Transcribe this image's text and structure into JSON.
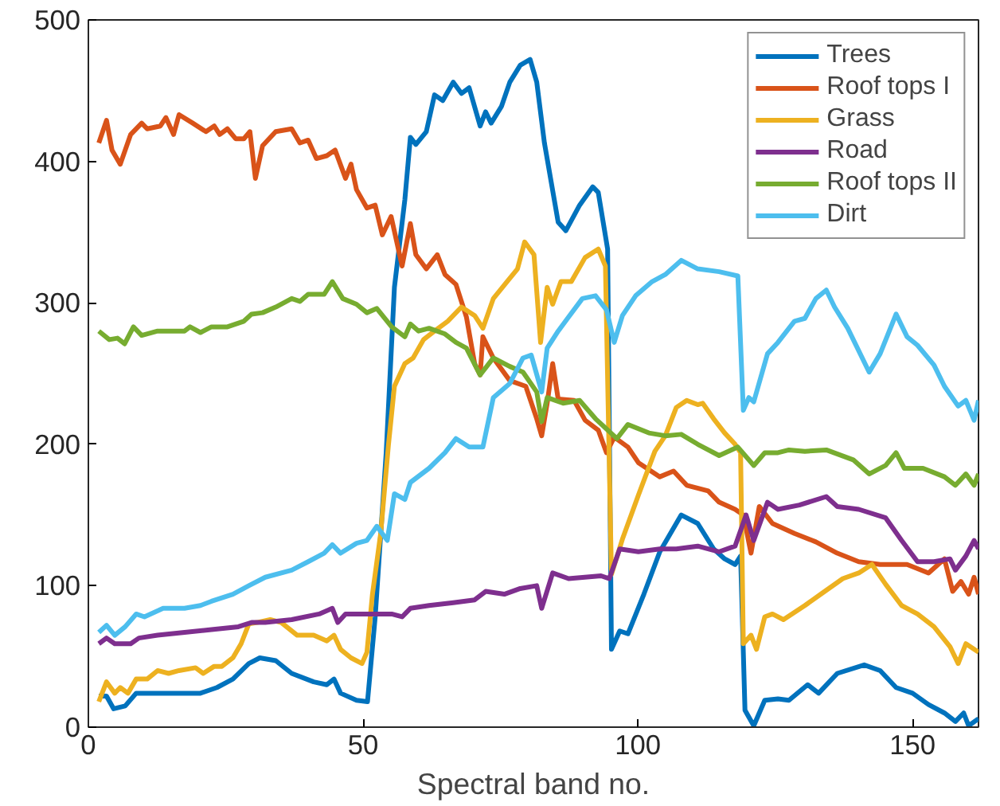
{
  "chart_data": {
    "type": "line",
    "xlabel": "Spectral band no.",
    "xlim": [
      0,
      162
    ],
    "ylim": [
      0,
      500
    ],
    "xticks": [
      0,
      50,
      100,
      150
    ],
    "yticks": [
      0,
      100,
      200,
      300,
      400,
      500
    ],
    "grid": false,
    "legend": "top right",
    "marker": "none",
    "line_style": "solid",
    "series": [
      {
        "name": "Trees",
        "color": "#0072bd",
        "x": [
          1.9,
          3.3,
          4.6,
          6.7,
          8.7,
          12.6,
          17.5,
          20.4,
          23.4,
          26.3,
          29.2,
          31.2,
          34.1,
          37,
          41,
          43.4,
          44.7,
          45.9,
          48.8,
          50.8,
          52.2,
          54.2,
          55.7,
          57.6,
          58.6,
          59.6,
          61.5,
          63,
          64.5,
          66.4,
          67.9,
          69.3,
          71.3,
          72.3,
          73.3,
          75.2,
          76.7,
          78.6,
          80.4,
          81.6,
          83,
          85.5,
          86.9,
          89.4,
          91.8,
          92.8,
          94.5,
          95.2,
          96.7,
          98.2,
          101.1,
          104,
          107.9,
          110.9,
          113.8,
          115.8,
          117.7,
          118.7,
          119.5,
          121.1,
          123.1,
          125.5,
          127.5,
          130.9,
          132.9,
          136.3,
          141.2,
          144.1,
          147,
          150,
          152.9,
          155.8,
          157.8,
          159.3,
          160.2,
          162
        ],
        "values": [
          22,
          22,
          13,
          15,
          24,
          24,
          24,
          24,
          28,
          34,
          45,
          49,
          47,
          38,
          32,
          30,
          34,
          24,
          19,
          18,
          78,
          194,
          311,
          373,
          417,
          412,
          421,
          447,
          443,
          456,
          448,
          452,
          425,
          435,
          427,
          439,
          456,
          468,
          472,
          456,
          413,
          357,
          351,
          369,
          382,
          378,
          338,
          55,
          68,
          66,
          94,
          124,
          150,
          144,
          126,
          119,
          115,
          121,
          12,
          1,
          19,
          20,
          19,
          30,
          24,
          38,
          44,
          40,
          28,
          24,
          16,
          10,
          4,
          10,
          1,
          6
        ]
      },
      {
        "name": "Roof tops I",
        "color": "#d95319",
        "x": [
          1.9,
          3.3,
          4.3,
          5.8,
          7.7,
          9.7,
          10.7,
          13.1,
          14.1,
          15.5,
          16.5,
          19,
          21.4,
          22.9,
          23.9,
          25.3,
          26.8,
          28.3,
          29.4,
          30.4,
          31.7,
          34.1,
          37,
          38.5,
          40,
          41.5,
          43.4,
          44.9,
          46.8,
          47.8,
          48.8,
          50.7,
          52.2,
          53.5,
          55.1,
          57.1,
          58.6,
          59.6,
          61.5,
          63.5,
          64.9,
          66.9,
          68.8,
          70.3,
          71.3,
          71.8,
          73.7,
          76.7,
          79.6,
          81.6,
          82.5,
          83.5,
          84.5,
          85.5,
          88.4,
          90.4,
          92.8,
          94.3,
          95.7,
          98.2,
          100.1,
          104,
          106.5,
          108.9,
          112.8,
          114.8,
          117.7,
          119.2,
          120.6,
          122.1,
          124.5,
          128.5,
          132.4,
          136.3,
          140.2,
          144.1,
          149,
          152.9,
          155.8,
          157.3,
          158.8,
          160.2,
          161.2,
          162
        ],
        "values": [
          413,
          429,
          408,
          398,
          419,
          427,
          423,
          425,
          431,
          419,
          433,
          427,
          421,
          425,
          419,
          423,
          416,
          416,
          421,
          388,
          411,
          421,
          423,
          413,
          415,
          402,
          404,
          408,
          388,
          398,
          380,
          367,
          369,
          348,
          361,
          326,
          356,
          334,
          324,
          334,
          320,
          313,
          290,
          257,
          249,
          276,
          261,
          245,
          241,
          218,
          206,
          229,
          257,
          232,
          231,
          217,
          210,
          194,
          205,
          198,
          187,
          177,
          181,
          171,
          167,
          159,
          154,
          150,
          123,
          156,
          144,
          137,
          131,
          123,
          117,
          115,
          115,
          109,
          119,
          96,
          103,
          94,
          106,
          94
        ]
      },
      {
        "name": "Grass",
        "color": "#edb120",
        "x": [
          1.9,
          3.3,
          4.8,
          5.8,
          7.2,
          8.7,
          10.7,
          12.6,
          14.6,
          16.5,
          19.5,
          20.9,
          22.9,
          24.3,
          26.3,
          27.8,
          29.2,
          30.7,
          33.1,
          35.1,
          38,
          41,
          43.4,
          44.7,
          45.9,
          47.8,
          49.8,
          50.7,
          51.7,
          53.2,
          54.6,
          55.7,
          57.6,
          59.1,
          61,
          63,
          65.4,
          67.9,
          70.3,
          71.8,
          73.7,
          76.2,
          78.1,
          79.4,
          81.1,
          82.3,
          83.5,
          84.5,
          86,
          87.9,
          90.4,
          92.8,
          94.1,
          95.2,
          97.2,
          100.1,
          103.1,
          105,
          107,
          108.9,
          110.9,
          111.8,
          113.8,
          115.8,
          117.7,
          118.7,
          119.2,
          120.6,
          121.6,
          123.1,
          124.5,
          126.5,
          130.4,
          133.3,
          137.3,
          140.2,
          142.6,
          145.1,
          148,
          150.9,
          153.9,
          156.8,
          158.3,
          159.7,
          162
        ],
        "values": [
          18,
          32,
          24,
          28,
          24,
          34,
          34,
          40,
          38,
          40,
          42,
          38,
          43,
          43,
          49,
          59,
          73,
          74,
          76,
          74,
          65,
          65,
          61,
          65,
          55,
          49,
          45,
          53,
          94,
          137,
          199,
          241,
          257,
          261,
          274,
          280,
          287,
          297,
          291,
          282,
          303,
          315,
          324,
          343,
          334,
          272,
          311,
          299,
          315,
          315,
          332,
          338,
          326,
          108,
          133,
          164,
          195,
          206,
          226,
          231,
          228,
          229,
          218,
          208,
          200,
          194,
          59,
          65,
          55,
          78,
          80,
          76,
          86,
          94,
          105,
          109,
          115,
          101,
          86,
          80,
          71,
          57,
          45,
          59,
          53
        ]
      },
      {
        "name": "Road",
        "color": "#7e2f8e",
        "x": [
          1.9,
          3.3,
          4.8,
          7.7,
          9.2,
          12.6,
          17.5,
          22.4,
          27.3,
          29.7,
          32.2,
          37,
          42,
          44.4,
          45.4,
          46.8,
          50.7,
          55.2,
          57.1,
          58.6,
          62,
          66.4,
          70.3,
          72.3,
          75.7,
          78.6,
          81.6,
          82.5,
          84.5,
          87.4,
          93.3,
          94.8,
          96.7,
          100.1,
          104,
          107,
          110.9,
          114.8,
          117.7,
          119.7,
          121.1,
          123.6,
          125.5,
          129.4,
          134.3,
          136.3,
          140.2,
          145.1,
          148,
          150.9,
          153.9,
          156.8,
          157.8,
          159.7,
          161.2,
          162
        ],
        "values": [
          59,
          63,
          59,
          59,
          63,
          65,
          67,
          69,
          71,
          74,
          74,
          76,
          80,
          84,
          74,
          80,
          80,
          80,
          78,
          84,
          86,
          88,
          90,
          96,
          94,
          98,
          100,
          84,
          109,
          105,
          107,
          105,
          126,
          124,
          126,
          126,
          128,
          124,
          128,
          150,
          132,
          159,
          154,
          157,
          163,
          156,
          154,
          148,
          132,
          117,
          117,
          119,
          111,
          121,
          132,
          126
        ]
      },
      {
        "name": "Roof tops II",
        "color": "#77ac30",
        "x": [
          1.9,
          3.8,
          5.3,
          6.6,
          8.2,
          9.7,
          12.6,
          14.6,
          17.5,
          18.5,
          20.4,
          22.4,
          25.3,
          28.3,
          29.7,
          31.7,
          34.1,
          37,
          38.5,
          40,
          42.9,
          44.4,
          46.3,
          48.8,
          50.7,
          52.5,
          55.2,
          57.6,
          58.6,
          60.1,
          62,
          64.9,
          66.9,
          68.8,
          71.3,
          73.7,
          76.7,
          79.1,
          81.6,
          82.5,
          83.5,
          86.4,
          89.4,
          92.3,
          96.2,
          98.2,
          102,
          105,
          107.9,
          110.9,
          114.8,
          118.2,
          121.1,
          123.1,
          125.5,
          127.5,
          130.4,
          134.3,
          139.2,
          142.1,
          145.1,
          147,
          148.5,
          151.9,
          155.8,
          157.8,
          159.7,
          161.2,
          162
        ],
        "values": [
          280,
          274,
          275,
          271,
          283,
          277,
          280,
          280,
          280,
          283,
          279,
          283,
          283,
          287,
          292,
          293,
          297,
          303,
          301,
          306,
          306,
          315,
          303,
          299,
          293,
          296,
          283,
          276,
          285,
          280,
          282,
          278,
          272,
          268,
          249,
          261,
          255,
          251,
          237,
          216,
          233,
          229,
          231,
          218,
          204,
          214,
          208,
          206,
          207,
          200,
          192,
          198,
          185,
          194,
          194,
          196,
          195,
          196,
          189,
          179,
          185,
          194,
          183,
          183,
          177,
          171,
          179,
          171,
          179
        ]
      },
      {
        "name": "Dirt",
        "color": "#4dbeee",
        "x": [
          1.9,
          3.3,
          4.8,
          6.7,
          8.7,
          10.2,
          13.6,
          17.5,
          20.4,
          22.4,
          26.3,
          29.2,
          32.2,
          37,
          40,
          42.9,
          44.4,
          45.9,
          48.8,
          50.7,
          52.5,
          54.4,
          55.7,
          57.6,
          58.6,
          62,
          64.9,
          66.9,
          69.3,
          71.8,
          73.7,
          76.7,
          79.1,
          80.6,
          82.5,
          83.5,
          85.5,
          87.4,
          89.9,
          92.3,
          94.3,
          95.7,
          97.2,
          99.6,
          102.6,
          105,
          107.9,
          110.9,
          114.8,
          118.2,
          119.2,
          120.2,
          121.1,
          123.6,
          125.5,
          128.5,
          130.4,
          132.4,
          134.3,
          135.8,
          138.2,
          142.1,
          144.1,
          147,
          149,
          150.9,
          153.9,
          155.8,
          158.3,
          159.7,
          161.2,
          162
        ],
        "values": [
          67,
          72,
          65,
          71,
          80,
          78,
          84,
          84,
          86,
          89,
          94,
          100,
          106,
          111,
          117,
          123,
          129,
          123,
          130,
          132,
          142,
          132,
          165,
          161,
          173,
          183,
          194,
          204,
          198,
          198,
          233,
          243,
          261,
          263,
          237,
          268,
          280,
          290,
          303,
          305,
          295,
          272,
          291,
          305,
          315,
          320,
          330,
          324,
          322,
          319,
          224,
          233,
          230,
          264,
          272,
          287,
          289,
          303,
          309,
          297,
          282,
          251,
          264,
          292,
          276,
          270,
          256,
          241,
          227,
          231,
          217,
          231
        ]
      }
    ]
  }
}
